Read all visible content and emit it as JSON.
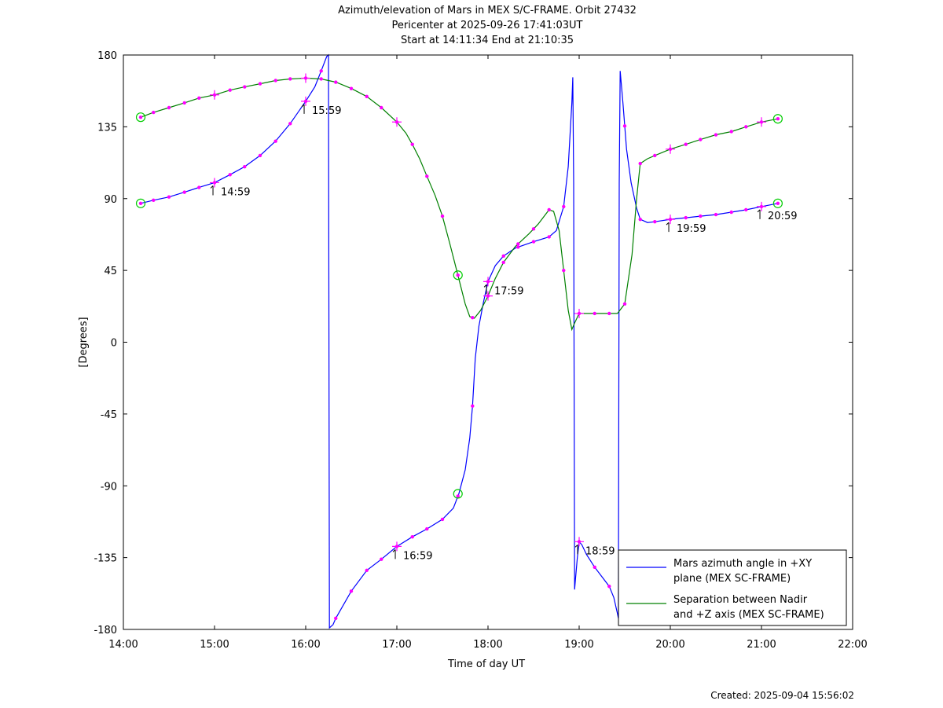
{
  "header": {
    "title": "Azimuth/elevation of Mars in MEX S/C-FRAME.  Orbit 27432",
    "pericenter": "Pericenter at 2025-09-26 17:41:03UT",
    "start_end": "Start at 14:11:34 End at 21:10:35"
  },
  "footer": {
    "created": "Created: 2025-09-04 15:56:02"
  },
  "colors": {
    "azimuth": "#0000ff",
    "separation": "#008000",
    "markers": "#ff00ff",
    "circles": "#00cc00"
  },
  "chart_data": {
    "type": "line",
    "title": "Azimuth/elevation of Mars in MEX S/C-FRAME.  Orbit 27432",
    "xlabel": "Time of day UT",
    "ylabel": "[Degrees]",
    "xlim": [
      14,
      22
    ],
    "ylim": [
      -180,
      180
    ],
    "x_ticks": [
      14,
      15,
      16,
      17,
      18,
      19,
      20,
      21,
      22
    ],
    "x_tick_labels": [
      "14:00",
      "15:00",
      "16:00",
      "17:00",
      "18:00",
      "19:00",
      "20:00",
      "21:00",
      "22:00"
    ],
    "y_ticks": [
      180,
      135,
      90,
      45,
      0,
      -45,
      -90,
      -135,
      -180
    ],
    "y_tick_labels": [
      "180",
      "135",
      "90",
      "45",
      "0",
      "-45",
      "-90",
      "-135",
      "-180"
    ],
    "legend_position": "bottom-right",
    "series": [
      {
        "name": "Mars azimuth angle in +XY plane (MEX SC-FRAME)",
        "legend_lines": [
          "Mars azimuth angle in +XY",
          "plane (MEX SC-FRAME)"
        ],
        "color": "#0000ff",
        "points": [
          [
            14.19,
            87
          ],
          [
            14.33,
            89
          ],
          [
            14.5,
            91
          ],
          [
            14.67,
            94
          ],
          [
            14.83,
            97
          ],
          [
            15.0,
            100
          ],
          [
            15.17,
            105
          ],
          [
            15.33,
            110
          ],
          [
            15.5,
            117
          ],
          [
            15.67,
            126
          ],
          [
            15.83,
            137
          ],
          [
            16.0,
            151
          ],
          [
            16.1,
            160
          ],
          [
            16.17,
            170
          ],
          [
            16.23,
            179
          ],
          [
            16.25,
            180
          ],
          [
            16.26,
            -179
          ],
          [
            16.3,
            -177
          ],
          [
            16.33,
            -173
          ],
          [
            16.5,
            -156
          ],
          [
            16.67,
            -143
          ],
          [
            16.83,
            -136
          ],
          [
            17.0,
            -128
          ],
          [
            17.17,
            -122
          ],
          [
            17.33,
            -117
          ],
          [
            17.5,
            -111
          ],
          [
            17.62,
            -104
          ],
          [
            17.68,
            -95
          ],
          [
            17.75,
            -80
          ],
          [
            17.8,
            -60
          ],
          [
            17.83,
            -40
          ],
          [
            17.86,
            -10
          ],
          [
            17.9,
            10
          ],
          [
            17.95,
            25
          ],
          [
            18.0,
            38
          ],
          [
            18.08,
            48
          ],
          [
            18.17,
            54
          ],
          [
            18.3,
            59
          ],
          [
            18.5,
            63
          ],
          [
            18.67,
            66
          ],
          [
            18.75,
            70
          ],
          [
            18.83,
            85
          ],
          [
            18.88,
            110
          ],
          [
            18.92,
            150
          ],
          [
            18.93,
            166
          ],
          [
            18.94,
            100
          ],
          [
            18.95,
            -155
          ],
          [
            18.96,
            -148
          ],
          [
            18.98,
            -135
          ],
          [
            19.0,
            -125
          ],
          [
            19.03,
            -127
          ],
          [
            19.08,
            -133
          ],
          [
            19.17,
            -141
          ],
          [
            19.25,
            -147
          ],
          [
            19.33,
            -153
          ],
          [
            19.38,
            -160
          ],
          [
            19.42,
            -170
          ],
          [
            19.43,
            -173
          ],
          [
            19.44,
            100
          ],
          [
            19.45,
            170
          ],
          [
            19.48,
            150
          ],
          [
            19.52,
            121
          ],
          [
            19.57,
            100
          ],
          [
            19.63,
            84
          ],
          [
            19.67,
            77
          ],
          [
            19.75,
            75
          ],
          [
            19.83,
            75.5
          ],
          [
            20.0,
            77
          ],
          [
            20.17,
            78
          ],
          [
            20.33,
            79
          ],
          [
            20.5,
            80
          ],
          [
            20.67,
            81.5
          ],
          [
            20.83,
            83
          ],
          [
            21.0,
            85
          ],
          [
            21.18,
            87
          ]
        ]
      },
      {
        "name": "Separation between Nadir and +Z axis (MEX SC-FRAME)",
        "legend_lines": [
          "Separation between Nadir",
          "and +Z axis (MEX SC-FRAME)"
        ],
        "color": "#008000",
        "points": [
          [
            14.19,
            141
          ],
          [
            14.33,
            144
          ],
          [
            14.5,
            147
          ],
          [
            14.67,
            150
          ],
          [
            14.83,
            153
          ],
          [
            15.0,
            155
          ],
          [
            15.17,
            158
          ],
          [
            15.33,
            160
          ],
          [
            15.5,
            162
          ],
          [
            15.67,
            164
          ],
          [
            15.83,
            165
          ],
          [
            16.0,
            165.5
          ],
          [
            16.17,
            165
          ],
          [
            16.33,
            163
          ],
          [
            16.5,
            159
          ],
          [
            16.67,
            154
          ],
          [
            16.83,
            147
          ],
          [
            17.0,
            138
          ],
          [
            17.1,
            131
          ],
          [
            17.17,
            124
          ],
          [
            17.25,
            115
          ],
          [
            17.33,
            104
          ],
          [
            17.42,
            92
          ],
          [
            17.5,
            79
          ],
          [
            17.58,
            62
          ],
          [
            17.67,
            42
          ],
          [
            17.75,
            24
          ],
          [
            17.8,
            16
          ],
          [
            17.85,
            15
          ],
          [
            17.92,
            20
          ],
          [
            18.0,
            29
          ],
          [
            18.08,
            40
          ],
          [
            18.17,
            50
          ],
          [
            18.3,
            60
          ],
          [
            18.45,
            68
          ],
          [
            18.55,
            74
          ],
          [
            18.67,
            83
          ],
          [
            18.72,
            82
          ],
          [
            18.78,
            70
          ],
          [
            18.83,
            45
          ],
          [
            18.88,
            20
          ],
          [
            18.92,
            8
          ],
          [
            18.95,
            12
          ],
          [
            19.0,
            18
          ],
          [
            19.17,
            18
          ],
          [
            19.33,
            18
          ],
          [
            19.42,
            18
          ],
          [
            19.5,
            24
          ],
          [
            19.58,
            55
          ],
          [
            19.63,
            90
          ],
          [
            19.67,
            112
          ],
          [
            19.75,
            115
          ],
          [
            19.83,
            117
          ],
          [
            20.0,
            121
          ],
          [
            20.17,
            124
          ],
          [
            20.33,
            127
          ],
          [
            20.5,
            130
          ],
          [
            20.67,
            132
          ],
          [
            20.83,
            135
          ],
          [
            21.0,
            138
          ],
          [
            21.18,
            140
          ]
        ]
      }
    ],
    "marker_times": [
      14.19,
      14.33,
      14.5,
      14.67,
      14.83,
      15.0,
      15.17,
      15.33,
      15.5,
      15.67,
      15.83,
      16.0,
      16.17,
      16.33,
      16.5,
      16.67,
      16.83,
      17.0,
      17.17,
      17.33,
      17.5,
      17.67,
      17.83,
      18.0,
      18.17,
      18.33,
      18.5,
      18.67,
      18.83,
      19.0,
      19.17,
      19.33,
      19.5,
      19.67,
      19.83,
      20.0,
      20.17,
      20.33,
      20.5,
      20.67,
      20.83,
      21.0,
      21.18
    ],
    "hour_marks": [
      15.0,
      16.0,
      17.0,
      18.0,
      19.0,
      20.0,
      21.0
    ],
    "annotations": [
      {
        "text": "14:59",
        "x": 14.983,
        "y": 100
      },
      {
        "text": "15:59",
        "x": 15.983,
        "y": 151
      },
      {
        "text": "16:59",
        "x": 16.983,
        "y": -128
      },
      {
        "text": "17:59",
        "x": 17.983,
        "y": 38
      },
      {
        "text": "18:59",
        "x": 18.983,
        "y": -125
      },
      {
        "text": "19:59",
        "x": 19.983,
        "y": 77
      },
      {
        "text": "20:59",
        "x": 20.983,
        "y": 85
      }
    ],
    "circles": [
      {
        "x": 14.19,
        "y": 141
      },
      {
        "x": 14.19,
        "y": 87
      },
      {
        "x": 17.67,
        "y": 42
      },
      {
        "x": 17.67,
        "y": -95
      },
      {
        "x": 21.18,
        "y": 140
      },
      {
        "x": 21.18,
        "y": 87
      }
    ]
  }
}
